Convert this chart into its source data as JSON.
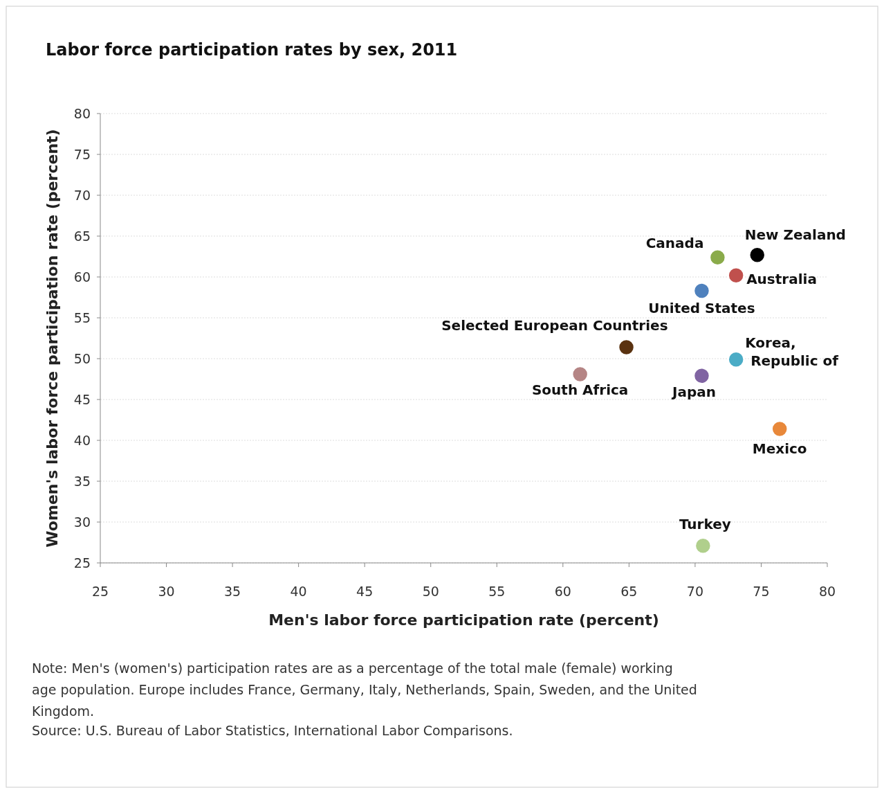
{
  "chart_data": {
    "type": "scatter",
    "title": "Labor force participation rates by sex, 2011",
    "xlabel": "Men's labor force participation rate (percent)",
    "ylabel": "Women's labor force participation rate (percent)",
    "xlim": [
      25,
      80
    ],
    "xticks": [
      25,
      30,
      35,
      40,
      45,
      50,
      55,
      60,
      65,
      70,
      75,
      80
    ],
    "ylim": [
      25,
      80
    ],
    "yticks": [
      25,
      30,
      35,
      40,
      45,
      50,
      55,
      60,
      65,
      70,
      75,
      80
    ],
    "grid": "y",
    "legend": false,
    "marker": "circle",
    "series": [
      {
        "name": "New Zealand",
        "color": "#000000",
        "x": [
          74.7
        ],
        "values": [
          62.7
        ]
      },
      {
        "name": "Canada",
        "color": "#8aab4a",
        "x": [
          71.7
        ],
        "values": [
          62.4
        ]
      },
      {
        "name": "Australia",
        "color": "#c0504d",
        "x": [
          73.1
        ],
        "values": [
          60.2
        ]
      },
      {
        "name": "United States",
        "color": "#4f81bd",
        "x": [
          70.5
        ],
        "values": [
          58.3
        ]
      },
      {
        "name": "Selected European Countries",
        "color": "#5a3210",
        "x": [
          64.8
        ],
        "values": [
          51.4
        ]
      },
      {
        "name": "Korea, Republic of",
        "color": "#4bacc6",
        "x": [
          73.1
        ],
        "values": [
          49.9
        ]
      },
      {
        "name": "South Africa",
        "color": "#b58585",
        "x": [
          61.3
        ],
        "values": [
          48.1
        ]
      },
      {
        "name": "Japan",
        "color": "#8064a2",
        "x": [
          70.5
        ],
        "values": [
          47.9
        ]
      },
      {
        "name": "Mexico",
        "color": "#e8883a",
        "x": [
          76.4
        ],
        "values": [
          41.4
        ]
      },
      {
        "name": "Turkey",
        "color": "#b0cf8c",
        "x": [
          70.6
        ],
        "values": [
          27.1
        ]
      }
    ],
    "annotations": [
      "Note: Men's (women's) participation rates are as a percentage of the total male (female) working age population. Europe includes France, Germany, Italy, Netherlands, Spain, Sweden, and the United Kingdom.",
      "Source: U.S. Bureau of Labor Statistics, International Labor Comparisons."
    ]
  }
}
